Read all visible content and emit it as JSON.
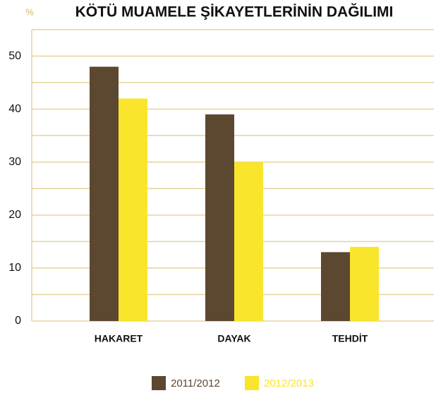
{
  "chart_data": {
    "type": "bar",
    "title": "KÖTÜ MUAMELE ŞİKAYETLERİNİN DAĞILIMI",
    "y_label": "%",
    "categories": [
      "HAKARET",
      "DAYAK",
      "TEHDİT"
    ],
    "series": [
      {
        "name": "2011/2012",
        "color": "#5c4730",
        "values": [
          48,
          39,
          13
        ]
      },
      {
        "name": "2012/2013",
        "color": "#f9e52b",
        "values": [
          42,
          30,
          14
        ]
      }
    ],
    "ylim": [
      0,
      55
    ],
    "yticks": [
      0,
      10,
      20,
      30,
      40,
      50
    ],
    "minor_yticks": [
      5,
      15,
      25,
      35,
      45,
      55
    ],
    "grid": true,
    "legend": "bottom"
  }
}
